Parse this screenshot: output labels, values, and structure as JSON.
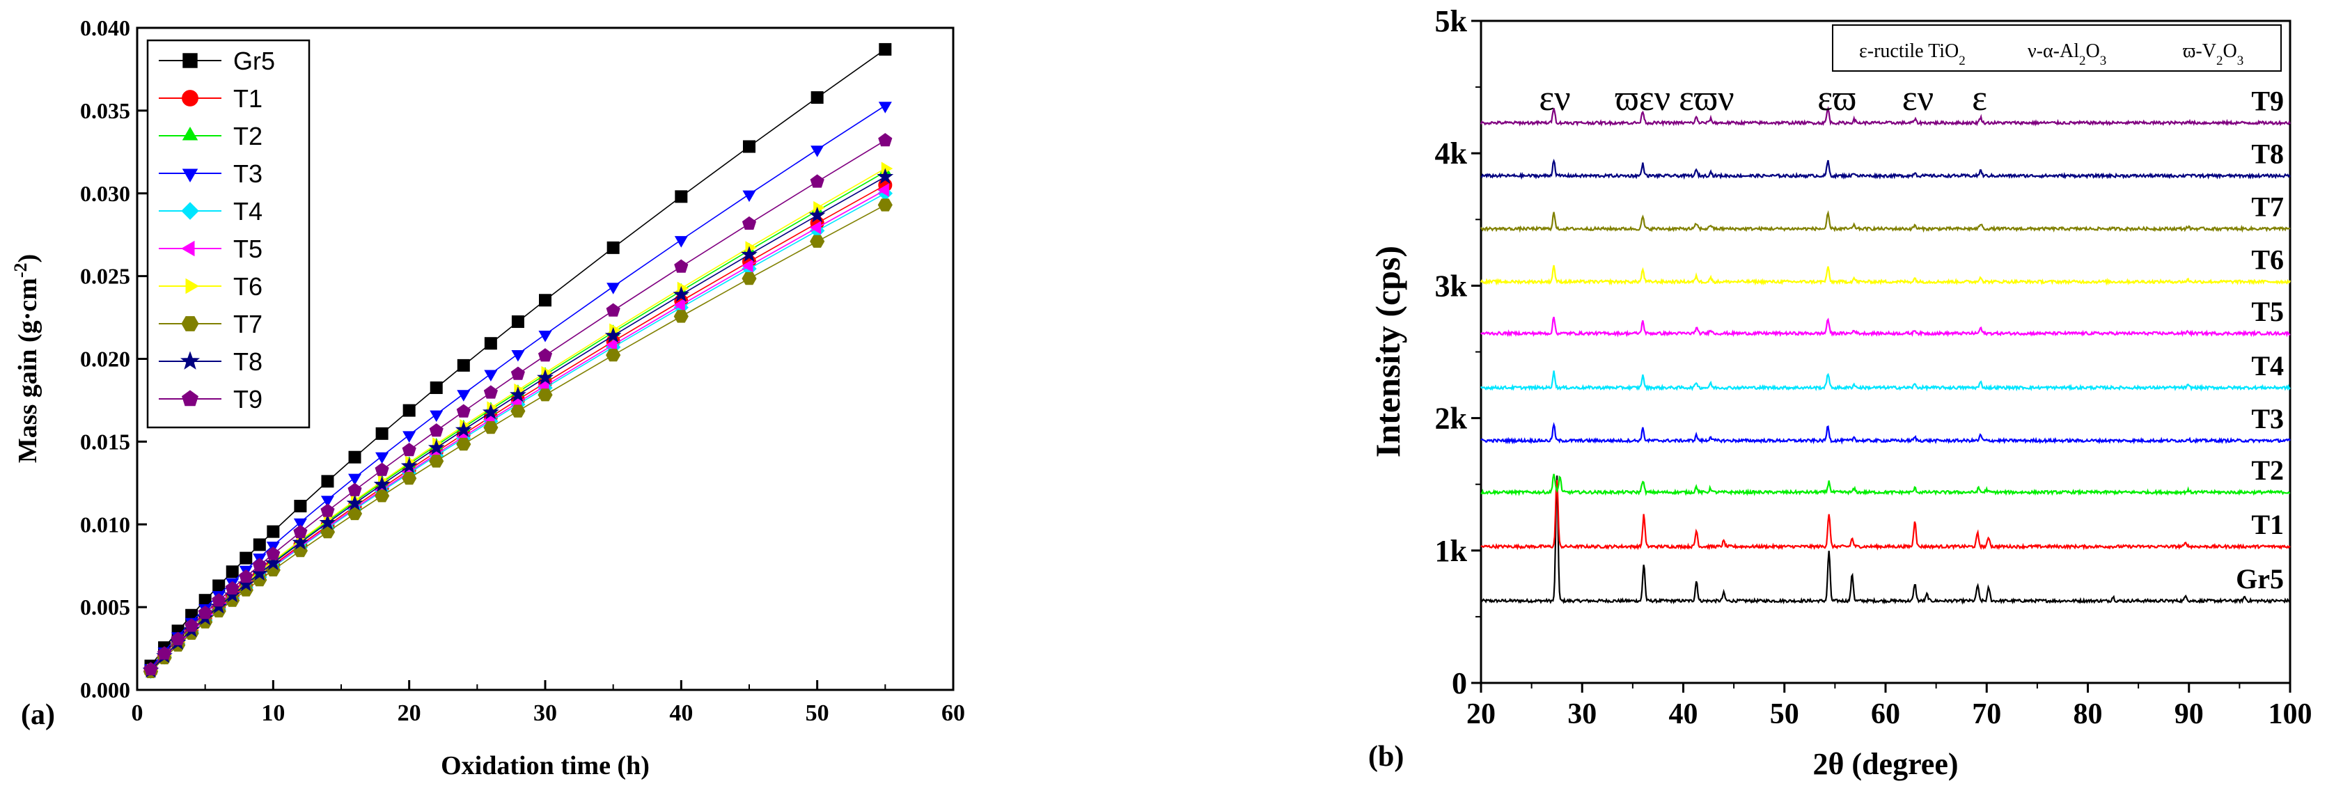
{
  "chart_data": [
    {
      "panel_label": "(a)",
      "type": "line",
      "xlabel": "Oxidation time (h)",
      "ylabel_text": "Mass gain (g·cm",
      "ylabel_sup": "-2",
      "ylabel_close": ")",
      "xlim": [
        0,
        60
      ],
      "ylim": [
        0,
        0.04
      ],
      "x_ticks": [
        0,
        10,
        20,
        30,
        40,
        50,
        60
      ],
      "y_ticks": [
        "0.000",
        "0.005",
        "0.010",
        "0.015",
        "0.020",
        "0.025",
        "0.030",
        "0.035",
        "0.040"
      ],
      "legend_position": "top-left",
      "x": [
        1,
        2,
        3,
        4,
        5,
        6,
        7,
        8,
        9,
        10,
        12,
        14,
        16,
        18,
        20,
        22,
        24,
        26,
        28,
        30,
        35,
        40,
        45,
        50,
        55
      ],
      "series": [
        {
          "name": "Gr5",
          "marker": "square",
          "color": "#000000",
          "final": 0.0387
        },
        {
          "name": "T1",
          "marker": "circle",
          "color": "#ff0000",
          "final": 0.0305
        },
        {
          "name": "T2",
          "marker": "triangle-up",
          "color": "#00ee00",
          "final": 0.0313
        },
        {
          "name": "T3",
          "marker": "triangle-down",
          "color": "#0000ff",
          "final": 0.0353
        },
        {
          "name": "T4",
          "marker": "diamond",
          "color": "#00e5ff",
          "final": 0.03
        },
        {
          "name": "T5",
          "marker": "triangle-left",
          "color": "#ff00ff",
          "final": 0.0302
        },
        {
          "name": "T6",
          "marker": "triangle-right",
          "color": "#ffff00",
          "final": 0.0315
        },
        {
          "name": "T7",
          "marker": "hexagon",
          "color": "#808000",
          "final": 0.0293
        },
        {
          "name": "T8",
          "marker": "star",
          "color": "#000080",
          "final": 0.031
        },
        {
          "name": "T9",
          "marker": "pentagon",
          "color": "#800080",
          "final": 0.0332
        }
      ]
    },
    {
      "panel_label": "(b)",
      "type": "line",
      "xlabel": "2θ (degree)",
      "ylabel": "Intensity (cps)",
      "xlim": [
        20,
        100
      ],
      "ylim": [
        0,
        5000
      ],
      "x_ticks": [
        20,
        30,
        40,
        50,
        60,
        70,
        80,
        90,
        100
      ],
      "y_ticks": [
        {
          "v": 0,
          "label": "0"
        },
        {
          "v": 1000,
          "label": "1k"
        },
        {
          "v": 2000,
          "label": "2k"
        },
        {
          "v": 3000,
          "label": "3k"
        },
        {
          "v": 4000,
          "label": "4k"
        },
        {
          "v": 5000,
          "label": "5k"
        }
      ],
      "phase_legend": [
        {
          "symbol": "ε",
          "text": "-ructile TiO",
          "sub": "2",
          "rest": ""
        },
        {
          "symbol": "ν",
          "text": "-α-Al",
          "sub": "2",
          "rest": "O",
          "sub2": "3"
        },
        {
          "symbol": "ϖ",
          "text": "-V",
          "sub": "2",
          "rest": "O",
          "sub2": "3"
        }
      ],
      "peak_labels": [
        {
          "x": 27.3,
          "text": "εν"
        },
        {
          "x": 36.0,
          "text": "ϖεν"
        },
        {
          "x": 42.3,
          "text": "εϖν"
        },
        {
          "x": 55.2,
          "text": "εϖ"
        },
        {
          "x": 63.2,
          "text": "εν"
        },
        {
          "x": 69.3,
          "text": "ε"
        }
      ],
      "series": [
        {
          "name": "Gr5",
          "color": "#000000",
          "baseline": 620,
          "peaks": [
            [
              27.5,
              950
            ],
            [
              36.1,
              280
            ],
            [
              41.3,
              150
            ],
            [
              44.0,
              60
            ],
            [
              54.4,
              380
            ],
            [
              56.7,
              200
            ],
            [
              62.9,
              130
            ],
            [
              64.1,
              50
            ],
            [
              69.1,
              120
            ],
            [
              70.2,
              100
            ],
            [
              82.5,
              30
            ],
            [
              89.7,
              40
            ],
            [
              95.5,
              30
            ]
          ]
        },
        {
          "name": "T1",
          "color": "#ff0000",
          "baseline": 1030,
          "peaks": [
            [
              27.5,
              520
            ],
            [
              36.1,
              240
            ],
            [
              41.3,
              120
            ],
            [
              44.0,
              40
            ],
            [
              54.4,
              250
            ],
            [
              56.7,
              60
            ],
            [
              62.9,
              200
            ],
            [
              69.1,
              100
            ],
            [
              70.2,
              70
            ],
            [
              89.7,
              30
            ]
          ]
        },
        {
          "name": "T2",
          "color": "#00ee00",
          "baseline": 1440,
          "peaks": [
            [
              27.2,
              140
            ],
            [
              27.8,
              120
            ],
            [
              36.0,
              90
            ],
            [
              41.3,
              40
            ],
            [
              42.7,
              30
            ],
            [
              54.4,
              80
            ],
            [
              56.9,
              25
            ],
            [
              62.9,
              30
            ],
            [
              69.2,
              30
            ],
            [
              70.0,
              20
            ],
            [
              89.9,
              15
            ]
          ]
        },
        {
          "name": "T3",
          "color": "#0000ff",
          "baseline": 1830,
          "peaks": [
            [
              27.2,
              120
            ],
            [
              36.0,
              90
            ],
            [
              41.3,
              40
            ],
            [
              42.7,
              30
            ],
            [
              54.3,
              110
            ],
            [
              56.9,
              25
            ],
            [
              62.9,
              25
            ],
            [
              69.4,
              40
            ],
            [
              89.9,
              15
            ]
          ]
        },
        {
          "name": "T4",
          "color": "#00e5ff",
          "baseline": 2230,
          "peaks": [
            [
              27.2,
              120
            ],
            [
              36.0,
              90
            ],
            [
              41.3,
              40
            ],
            [
              42.7,
              30
            ],
            [
              54.3,
              110
            ],
            [
              56.9,
              25
            ],
            [
              62.9,
              25
            ],
            [
              69.4,
              40
            ],
            [
              89.9,
              15
            ]
          ]
        },
        {
          "name": "T5",
          "color": "#ff00ff",
          "baseline": 2640,
          "peaks": [
            [
              27.2,
              120
            ],
            [
              36.0,
              90
            ],
            [
              41.3,
              40
            ],
            [
              42.7,
              30
            ],
            [
              54.3,
              110
            ],
            [
              56.9,
              25
            ],
            [
              62.9,
              25
            ],
            [
              69.4,
              40
            ],
            [
              89.9,
              15
            ]
          ]
        },
        {
          "name": "T6",
          "color": "#ffff00",
          "baseline": 3030,
          "peaks": [
            [
              27.2,
              120
            ],
            [
              36.0,
              90
            ],
            [
              41.3,
              40
            ],
            [
              42.7,
              30
            ],
            [
              54.3,
              110
            ],
            [
              56.9,
              25
            ],
            [
              62.9,
              25
            ],
            [
              69.4,
              40
            ],
            [
              89.9,
              15
            ]
          ]
        },
        {
          "name": "T7",
          "color": "#808000",
          "baseline": 3430,
          "peaks": [
            [
              27.2,
              120
            ],
            [
              36.0,
              90
            ],
            [
              41.3,
              40
            ],
            [
              42.7,
              30
            ],
            [
              54.3,
              110
            ],
            [
              56.9,
              25
            ],
            [
              62.9,
              25
            ],
            [
              69.4,
              40
            ],
            [
              89.9,
              15
            ]
          ]
        },
        {
          "name": "T8",
          "color": "#000080",
          "baseline": 3830,
          "peaks": [
            [
              27.2,
              120
            ],
            [
              36.0,
              90
            ],
            [
              41.3,
              40
            ],
            [
              42.7,
              30
            ],
            [
              54.3,
              110
            ],
            [
              56.9,
              25
            ],
            [
              62.9,
              25
            ],
            [
              69.4,
              40
            ],
            [
              89.9,
              15
            ]
          ]
        },
        {
          "name": "T9",
          "color": "#800080",
          "baseline": 4230,
          "peaks": [
            [
              27.2,
              120
            ],
            [
              36.0,
              90
            ],
            [
              41.3,
              40
            ],
            [
              42.7,
              30
            ],
            [
              54.3,
              110
            ],
            [
              56.9,
              25
            ],
            [
              62.9,
              25
            ],
            [
              69.4,
              40
            ],
            [
              89.9,
              15
            ]
          ]
        }
      ]
    }
  ]
}
